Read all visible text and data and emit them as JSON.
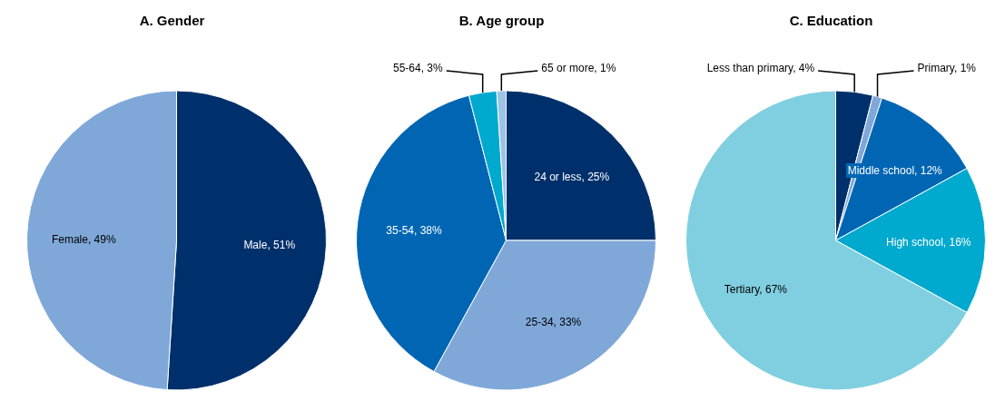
{
  "chart_data": [
    {
      "type": "pie",
      "title": "A. Gender",
      "categories": [
        "Male",
        "Female"
      ],
      "values": [
        51,
        49
      ],
      "colors": [
        "#00306b",
        "#7fa8d9"
      ],
      "value_labels": [
        "51%",
        "49%"
      ]
    },
    {
      "type": "pie",
      "title": "B. Age group",
      "categories": [
        "24 or less",
        "25-34",
        "35-54",
        "55-64",
        "65 or more"
      ],
      "values": [
        25,
        33,
        38,
        3,
        1
      ],
      "colors": [
        "#00306b",
        "#7fa8d9",
        "#0066b3",
        "#00a9ce",
        "#9dc3e6"
      ],
      "value_labels": [
        "25%",
        "33%",
        "38%",
        "3%",
        "1%"
      ]
    },
    {
      "type": "pie",
      "title": "C. Education",
      "categories": [
        "Less than primary",
        "Primary",
        "Middle school",
        "High school",
        "Tertiary"
      ],
      "values": [
        4,
        1,
        12,
        16,
        67
      ],
      "colors": [
        "#00306b",
        "#7fa8d9",
        "#0066b3",
        "#00a9ce",
        "#80cfe0"
      ],
      "value_labels": [
        "4%",
        "1%",
        "12%",
        "16%",
        "67%"
      ]
    }
  ]
}
